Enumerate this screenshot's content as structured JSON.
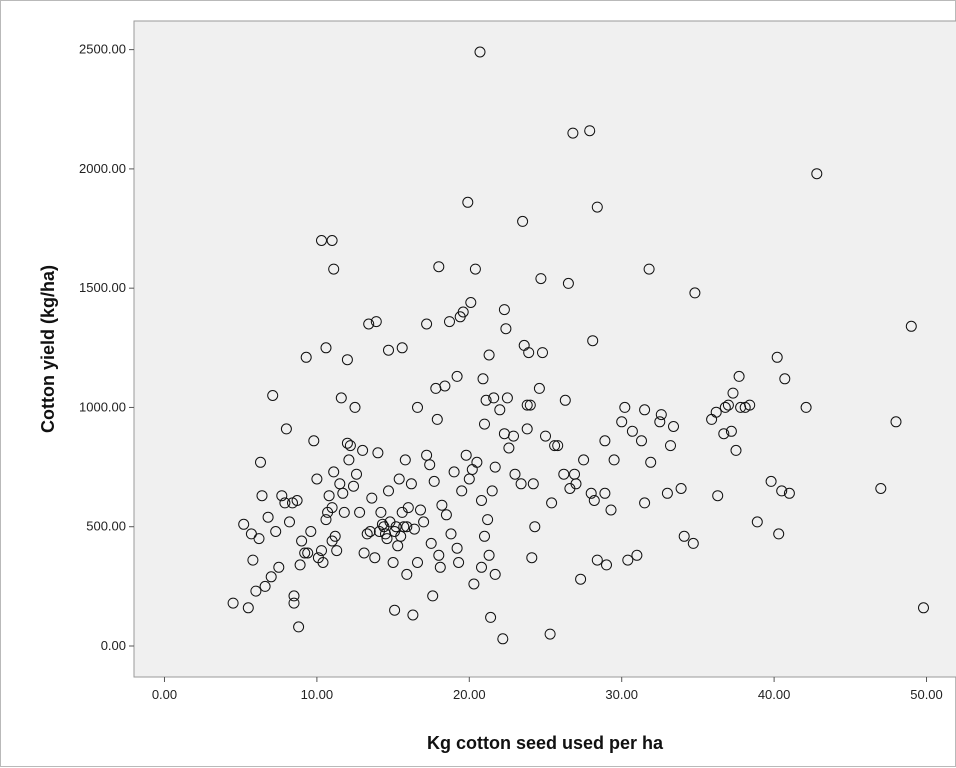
{
  "chart_data": {
    "type": "scatter",
    "title": "",
    "xlabel": "Kg cotton seed used per ha",
    "ylabel": "Cotton yield (kg/ha)",
    "xlim": [
      -2,
      52
    ],
    "ylim": [
      -130,
      2620
    ],
    "x_ticks": [
      0,
      10,
      20,
      30,
      40,
      50
    ],
    "y_ticks": [
      0,
      500,
      1000,
      1500,
      2000,
      2500
    ],
    "x_tick_labels": [
      "0.00",
      "10.00",
      "20.00",
      "30.00",
      "40.00",
      "50.00"
    ],
    "y_tick_labels": [
      "0.00",
      "500.00",
      "1000.00",
      "1500.00",
      "2000.00",
      "2500.00"
    ],
    "grid": false,
    "legend": "none",
    "colors": {
      "plot_background": "#f0f0f0",
      "marker": "#111111"
    },
    "x": [
      4.5,
      5.2,
      5.5,
      5.7,
      5.8,
      6.0,
      6.2,
      6.3,
      6.4,
      6.6,
      6.8,
      7.0,
      7.3,
      7.5,
      7.7,
      7.9,
      8.0,
      8.2,
      8.4,
      8.5,
      8.5,
      8.7,
      8.9,
      9.0,
      9.2,
      9.4,
      9.6,
      9.8,
      10.0,
      10.1,
      10.3,
      10.4,
      10.6,
      10.7,
      10.8,
      11.0,
      11.0,
      11.1,
      11.2,
      11.3,
      11.5,
      11.6,
      11.7,
      11.8,
      12.0,
      12.1,
      12.2,
      12.4,
      12.6,
      12.8,
      13.0,
      13.1,
      13.3,
      13.5,
      13.6,
      13.8,
      14.0,
      14.1,
      14.2,
      14.3,
      14.4,
      14.5,
      14.6,
      14.7,
      14.8,
      15.0,
      15.1,
      15.2,
      15.3,
      15.4,
      15.5,
      15.6,
      15.7,
      15.8,
      15.9,
      16.0,
      16.2,
      16.4,
      16.6,
      16.8,
      17.0,
      17.2,
      17.4,
      17.5,
      17.7,
      17.9,
      18.0,
      18.2,
      18.5,
      18.8,
      19.0,
      19.2,
      19.5,
      19.8,
      20.0,
      20.2,
      20.5,
      20.8,
      21.0,
      21.2,
      21.3,
      21.5,
      21.7,
      22.0,
      22.3,
      22.6,
      23.0,
      23.4,
      23.8,
      24.2,
      24.6,
      25.0,
      25.4,
      25.8,
      26.2,
      26.6,
      27.0,
      27.5,
      28.0,
      28.4,
      28.9,
      29.5,
      30.2,
      31.0,
      31.5,
      31.9,
      32.5,
      33.2,
      33.9,
      34.7,
      35.9,
      36.7,
      37.0,
      37.2,
      37.5,
      37.8,
      38.4,
      39.8,
      40.5,
      41.0,
      42.1,
      47.0,
      48.0,
      49.0,
      49.8,
      20.7,
      26.8,
      27.9,
      42.8,
      19.9,
      23.5,
      28.4,
      10.3,
      11.0,
      11.1,
      18.0,
      20.4,
      31.8,
      24.7,
      26.5,
      34.8,
      13.4,
      17.2,
      19.6,
      20.1,
      28.1,
      10.6,
      15.6,
      22.3,
      22.4,
      23.6,
      24.8,
      12.0,
      23.9,
      21.3,
      21.1,
      23.8,
      28.9,
      30.7,
      31.3,
      36.2,
      37.3,
      38.1,
      40.2,
      40.7,
      14.7,
      18.4,
      19.2,
      20.9,
      26.3,
      30.0,
      32.6,
      33.4,
      36.8,
      37.7,
      21.0,
      15.1,
      22.2,
      24.3,
      25.3,
      27.3,
      29.0,
      30.4,
      24.1,
      20.8,
      21.4,
      21.7,
      17.6,
      16.3,
      15.9,
      18.1,
      19.3,
      20.3,
      22.9,
      25.6,
      26.9,
      28.2,
      29.3,
      31.5,
      33.0,
      34.1,
      36.3,
      38.9,
      40.3,
      7.1,
      8.8,
      9.3,
      12.5,
      13.9,
      16.6,
      17.8,
      18.7,
      19.4,
      21.6,
      22.5,
      24.0
    ],
    "y": [
      180,
      510,
      160,
      470,
      360,
      230,
      450,
      770,
      630,
      250,
      540,
      290,
      480,
      330,
      630,
      600,
      910,
      520,
      600,
      180,
      210,
      610,
      340,
      440,
      390,
      390,
      480,
      860,
      700,
      370,
      400,
      350,
      530,
      560,
      630,
      580,
      440,
      730,
      460,
      400,
      680,
      1040,
      640,
      560,
      850,
      780,
      840,
      670,
      720,
      560,
      820,
      390,
      470,
      480,
      620,
      370,
      810,
      480,
      560,
      510,
      500,
      470,
      450,
      650,
      520,
      350,
      480,
      500,
      420,
      700,
      460,
      560,
      500,
      780,
      500,
      580,
      680,
      490,
      350,
      570,
      520,
      800,
      760,
      430,
      690,
      950,
      380,
      590,
      550,
      470,
      730,
      410,
      650,
      800,
      700,
      740,
      770,
      610,
      460,
      530,
      380,
      650,
      750,
      990,
      890,
      830,
      720,
      680,
      910,
      680,
      1080,
      880,
      600,
      840,
      720,
      660,
      680,
      780,
      640,
      360,
      640,
      780,
      1000,
      380,
      990,
      770,
      940,
      840,
      660,
      430,
      950,
      890,
      1010,
      900,
      820,
      1000,
      1010,
      690,
      650,
      640,
      1000,
      660,
      940,
      1340,
      160,
      2490,
      2150,
      2160,
      1980,
      1860,
      1780,
      1840,
      1700,
      1700,
      1580,
      1590,
      1580,
      1580,
      1540,
      1520,
      1480,
      1350,
      1350,
      1400,
      1440,
      1280,
      1250,
      1250,
      1410,
      1330,
      1260,
      1230,
      1200,
      1230,
      1220,
      1030,
      1010,
      860,
      900,
      860,
      980,
      1060,
      1000,
      1210,
      1120,
      1240,
      1090,
      1130,
      1120,
      1030,
      940,
      970,
      920,
      1000,
      1130,
      930,
      150,
      30,
      500,
      50,
      280,
      340,
      360,
      370,
      330,
      120,
      300,
      210,
      130,
      300,
      330,
      350,
      260,
      880,
      840,
      720,
      610,
      570,
      600,
      640,
      460,
      630,
      520,
      470,
      1050,
      80,
      1210,
      1000,
      1360,
      1000,
      1080,
      1360,
      1380,
      1040,
      1040,
      1010
    ]
  }
}
